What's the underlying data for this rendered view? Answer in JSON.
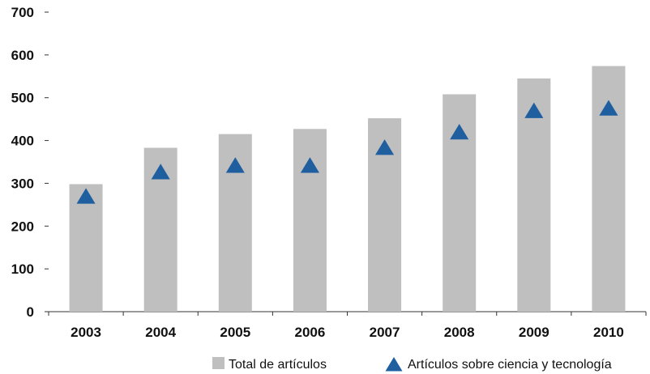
{
  "chart_data": {
    "type": "bar",
    "title": "",
    "xlabel": "",
    "ylabel": "",
    "categories": [
      "2003",
      "2004",
      "2005",
      "2006",
      "2007",
      "2008",
      "2009",
      "2010"
    ],
    "ylim": [
      0,
      700
    ],
    "yticks": [
      "0",
      "100",
      "200",
      "300",
      "400",
      "500",
      "600",
      "700"
    ],
    "grid": false,
    "legend_position": "bottom",
    "series": [
      {
        "name": "Total de artículos",
        "type": "bar",
        "color": "#bfbfbf",
        "values": [
          298,
          383,
          415,
          427,
          452,
          508,
          545,
          574
        ]
      },
      {
        "name": "Artículos sobre ciencia y tecnología",
        "type": "scatter",
        "marker": "triangle",
        "color": "#1f5fa0",
        "values": [
          268,
          325,
          340,
          340,
          382,
          418,
          468,
          474
        ]
      }
    ]
  }
}
